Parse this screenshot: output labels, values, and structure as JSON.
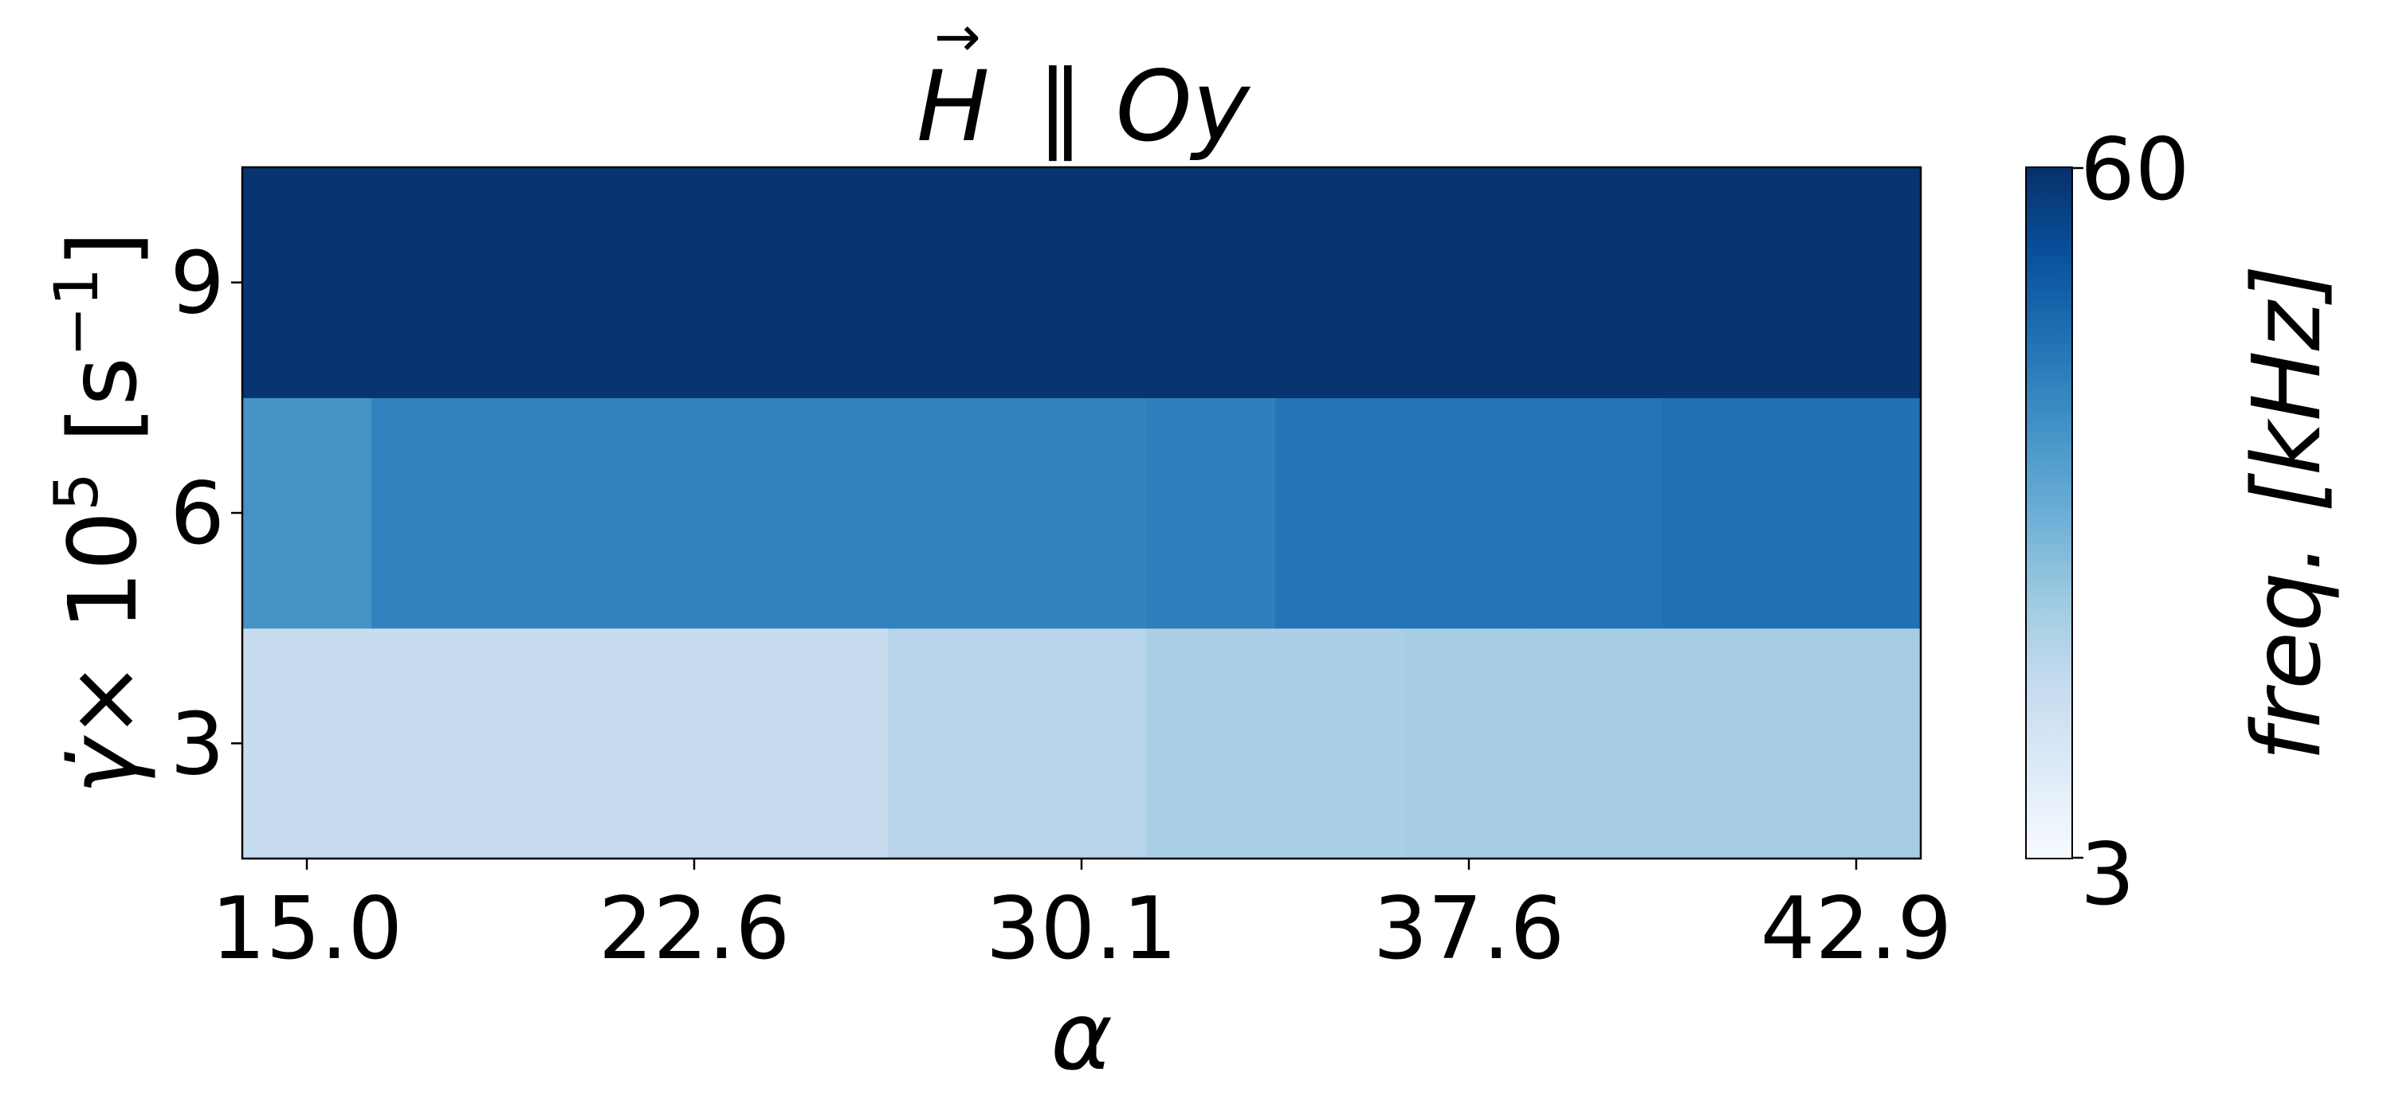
{
  "chart_data": {
    "type": "heatmap",
    "title": "H ∥ Oy",
    "title_vector_symbol": "H",
    "title_rest": "∥ Oy",
    "xlabel": "α",
    "ylabel": "γ̇ × 10⁵ [s⁻¹]",
    "ylabel_parts": {
      "symbol": "γ̇",
      "times": "× 10",
      "exponent": "5",
      "unit_open": " [s",
      "unit_exp": "−1",
      "unit_close": "]"
    },
    "x_tick_labels": [
      "15.0",
      "22.6",
      "30.1",
      "37.6",
      "42.9"
    ],
    "x_tick_positions": [
      0.5,
      3.5,
      6.5,
      9.5,
      12.5
    ],
    "y_categories": [
      "3",
      "6",
      "9"
    ],
    "x_columns": 13,
    "series": [
      {
        "y": "3",
        "values": [
          17,
          17,
          17,
          17,
          17,
          20,
          20,
          22,
          22,
          23,
          23,
          23,
          23
        ]
      },
      {
        "y": "6",
        "values": [
          38,
          42,
          42,
          42,
          42,
          42,
          42,
          43,
          45,
          45,
          45,
          46,
          46
        ]
      },
      {
        "y": "9",
        "values": [
          59,
          59,
          59,
          59,
          59,
          59,
          59,
          59,
          59,
          59,
          59,
          59,
          59
        ]
      }
    ],
    "colorbar": {
      "label": "freq. [kHz]",
      "min": 3,
      "max": 60,
      "min_label": "3",
      "max_label": "60",
      "colormap": "Blues"
    }
  }
}
